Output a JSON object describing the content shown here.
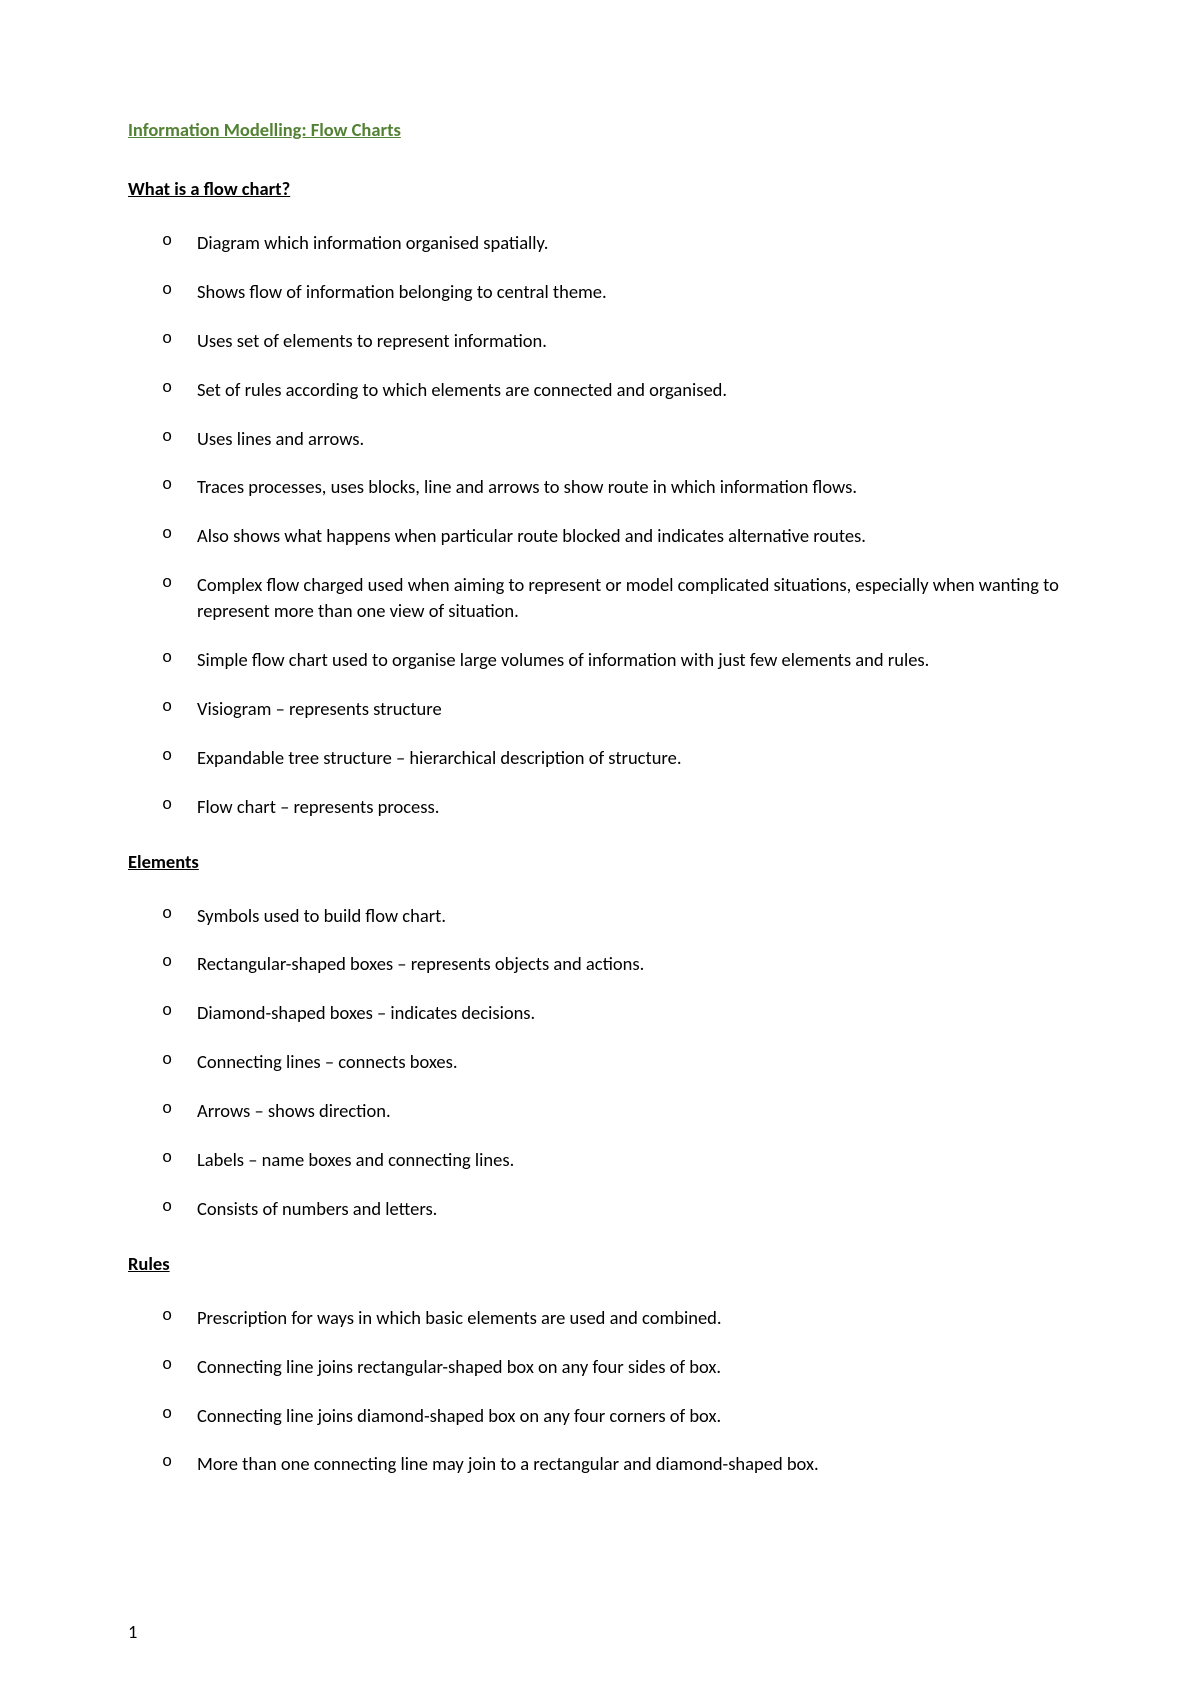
{
  "title": "Information Modelling: Flow Charts",
  "sections": [
    {
      "heading": "What is a flow chart?",
      "items": [
        "Diagram which information organised spatially.",
        "Shows flow of information belonging to central theme.",
        "Uses set of elements to represent information.",
        "Set of rules according to which elements are connected and organised.",
        "Uses lines and arrows.",
        "Traces processes, uses blocks, line and arrows to show route in which information flows.",
        "Also shows what happens when particular route blocked and indicates alternative routes.",
        "Complex flow charged used when aiming to represent or model complicated situations, especially when wanting to represent more than one view of situation.",
        "Simple flow chart used to organise large volumes of information with just few elements and rules.",
        "Visiogram – represents structure",
        "Expandable tree structure – hierarchical description of structure.",
        "Flow chart – represents process."
      ]
    },
    {
      "heading": "Elements",
      "items": [
        "Symbols used to build flow chart.",
        "Rectangular-shaped boxes – represents objects and actions.",
        "Diamond-shaped boxes – indicates decisions.",
        "Connecting lines – connects boxes.",
        "Arrows – shows direction.",
        "Labels – name boxes and connecting lines.",
        "Consists of numbers and letters."
      ]
    },
    {
      "heading": "Rules",
      "items": [
        "Prescription for ways in which basic elements are used and combined.",
        "Connecting line joins rectangular-shaped box on any four sides of box.",
        "Connecting line joins diamond-shaped box on any four corners of box.",
        "More than one connecting line may join to a rectangular and diamond-shaped box."
      ]
    }
  ],
  "pageNumber": "1",
  "colors": {
    "titleColor": "#548235",
    "textColor": "#000000",
    "backgroundColor": "#ffffff"
  }
}
